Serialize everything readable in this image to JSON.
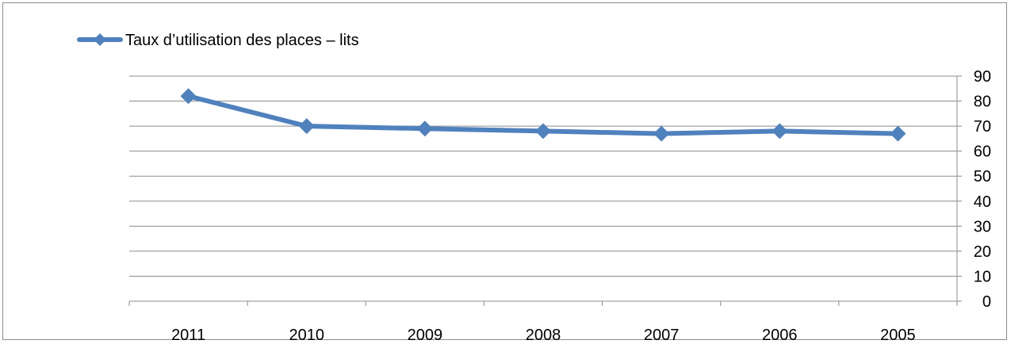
{
  "chart_data": {
    "type": "line",
    "categories": [
      "2011",
      "2010",
      "2009",
      "2008",
      "2007",
      "2006",
      "2005"
    ],
    "series": [
      {
        "name": "Taux d’utilisation des places – lits",
        "values": [
          82,
          70,
          69,
          68,
          67,
          68,
          67
        ],
        "color": "#4f81bd"
      }
    ],
    "y_ticks": [
      "0",
      "10",
      "20",
      "30",
      "40",
      "50",
      "60",
      "70",
      "80",
      "90"
    ],
    "ylim": [
      0,
      90
    ],
    "y_axis_side": "right",
    "grid": true,
    "legend_position": "top-left",
    "marker": "diamond",
    "gridline_color": "#8c8c8c"
  }
}
